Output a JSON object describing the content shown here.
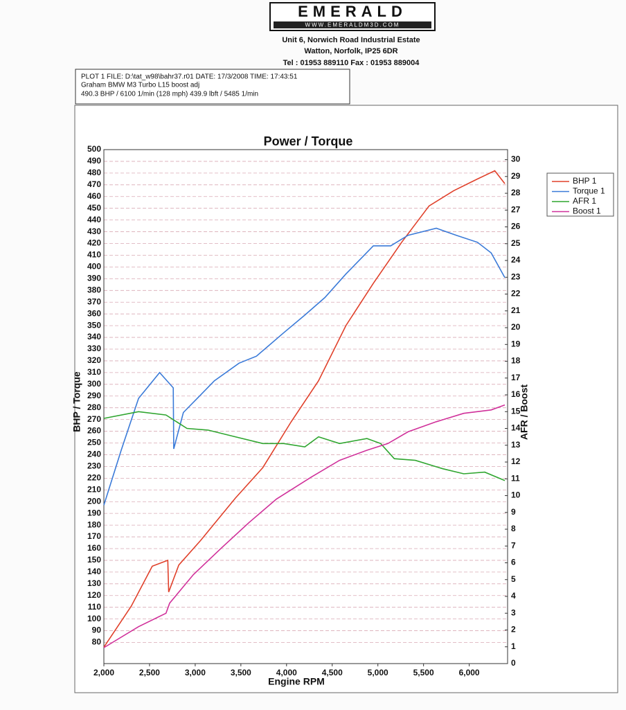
{
  "header": {
    "brand": "EMERALD",
    "web": "WWW.EMERALDM3D.COM",
    "address1": "Unit 6, Norwich Road Industrial Estate",
    "address2": "Watton, Norfolk, IP25 6DR",
    "phone": "Tel : 01953 889110   Fax : 01953 889004"
  },
  "info": {
    "line1": "PLOT 1 FILE: D:\\tat_w98\\bahr37.r01  DATE: 17/3/2008  TIME: 17:43:51",
    "line2": "Graham BMW M3 Turbo L15 boost adj",
    "line3": "490.3 BHP / 6100 1/min (128 mph)    439.9 lbft / 5485 1/min"
  },
  "chart_data": {
    "type": "line",
    "title": "Power / Torque",
    "x_label": "Engine RPM",
    "y_label": "BHP / Torque",
    "y2_label": "AFR / Boost",
    "xlim": [
      2000,
      6420
    ],
    "xticks": [
      {
        "value": 2000,
        "label": "2,000"
      },
      {
        "value": 2500,
        "label": "2,500"
      },
      {
        "value": 3000,
        "label": "3,000"
      },
      {
        "value": 3500,
        "label": "3,500"
      },
      {
        "value": 4000,
        "label": "4,000"
      },
      {
        "value": 4500,
        "label": "4,500"
      },
      {
        "value": 5000,
        "label": "5,000"
      },
      {
        "value": 5500,
        "label": "5,500"
      },
      {
        "value": 6000,
        "label": "6,000"
      }
    ],
    "ylim": [
      62,
      500
    ],
    "yticks": [
      80,
      90,
      100,
      110,
      120,
      130,
      140,
      150,
      160,
      170,
      180,
      190,
      200,
      210,
      220,
      230,
      240,
      250,
      260,
      270,
      280,
      290,
      300,
      310,
      320,
      330,
      340,
      350,
      360,
      370,
      380,
      390,
      400,
      410,
      420,
      430,
      440,
      450,
      460,
      470,
      480,
      490,
      500
    ],
    "y2lim": [
      0,
      30.6
    ],
    "y2ticks": [
      0,
      1,
      2,
      3,
      4,
      5,
      6,
      7,
      8,
      9,
      10,
      11,
      12,
      13,
      14,
      15,
      16,
      17,
      18,
      19,
      20,
      21,
      22,
      23,
      24,
      25,
      26,
      27,
      28,
      29,
      30
    ],
    "grid": true,
    "legend": "right",
    "series": [
      {
        "name": "BHP 1",
        "color": "#e0402a",
        "x": [
          2000,
          2300,
          2530,
          2700,
          2710,
          2820,
          3060,
          3440,
          3740,
          4050,
          4350,
          4650,
          4950,
          5260,
          5560,
          5830,
          6090,
          6280,
          6390
        ],
        "values": [
          76,
          111,
          145,
          150,
          123,
          146,
          167,
          203,
          229,
          268,
          303,
          350,
          386,
          421,
          452,
          465,
          475,
          482,
          471
        ]
      },
      {
        "name": "Torque 1",
        "color": "#3a7ad8",
        "x": [
          2000,
          2190,
          2380,
          2610,
          2760,
          2765,
          2870,
          3060,
          3210,
          3480,
          3670,
          3970,
          4200,
          4420,
          4650,
          4950,
          5140,
          5330,
          5640,
          5860,
          6090,
          6240,
          6390
        ],
        "values": [
          197,
          244,
          288,
          310,
          297,
          245,
          276,
          291,
          303,
          318,
          324,
          344,
          359,
          374,
          394,
          418,
          418,
          427,
          433,
          427,
          421,
          412,
          391
        ]
      },
      {
        "name": "AFR 1",
        "color": "#2fa52f",
        "axis": "y2",
        "x": [
          2000,
          2380,
          2680,
          2910,
          3140,
          3440,
          3740,
          3970,
          4200,
          4350,
          4580,
          4880,
          5030,
          5180,
          5410,
          5710,
          5940,
          6170,
          6390
        ],
        "values": [
          14.6,
          15.0,
          14.8,
          14.0,
          13.9,
          13.5,
          13.1,
          13.1,
          12.9,
          13.5,
          13.1,
          13.4,
          13.1,
          12.2,
          12.1,
          11.6,
          11.3,
          11.4,
          10.9
        ]
      },
      {
        "name": "Boost 1",
        "color": "#d0309a",
        "axis": "y2",
        "x": [
          2000,
          2380,
          2680,
          2720,
          2980,
          3290,
          3590,
          3890,
          4270,
          4580,
          4880,
          5110,
          5330,
          5640,
          5940,
          6240,
          6390
        ],
        "values": [
          0.95,
          2.2,
          3.0,
          3.6,
          5.3,
          6.9,
          8.4,
          9.8,
          11.1,
          12.1,
          12.7,
          13.1,
          13.8,
          14.4,
          14.9,
          15.1,
          15.4
        ]
      }
    ]
  }
}
